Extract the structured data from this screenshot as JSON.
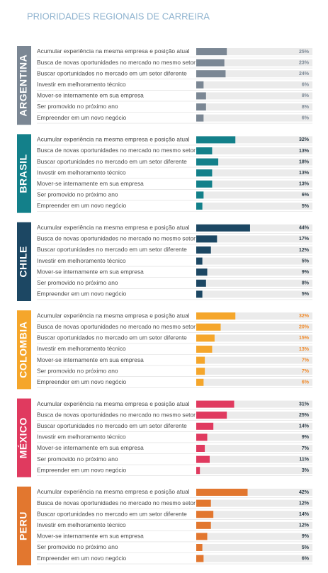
{
  "title": "PRIORIDADES REGIONAIS DE CARREIRA",
  "chart_data": [
    {
      "type": "bar",
      "orientation": "horizontal",
      "title": "ARGENTINA",
      "color": "#7b8794",
      "label_color": "#7b8794",
      "xlim": [
        0,
        95
      ],
      "categories": [
        "Acumular experiência na mesma empresa e posição atual",
        "Busca de novas oportunidades no mercado no mesmo setor",
        "Buscar oportunidades no mercado em um setor diferente",
        "Investir em melhoramento técnico",
        "Mover-se internamente em sua empresa",
        "Ser promovido no próximo ano",
        "Empreender em um novo negócio"
      ],
      "values": [
        25,
        23,
        24,
        6,
        8,
        8,
        6
      ],
      "value_labels": [
        "25%",
        "23%",
        "24%",
        "6%",
        "8%",
        "8%",
        "6%"
      ]
    },
    {
      "type": "bar",
      "orientation": "horizontal",
      "title": "BRASIL",
      "color": "#13808a",
      "label_color": "#2b3a45",
      "xlim": [
        0,
        95
      ],
      "categories": [
        "Acumular experiência na mesma empresa e posição atual",
        "Busca de novas oportunidades no mercado no mesmo setor",
        "Buscar oportunidades no mercado em um setor diferente",
        "Investir em melhoramento técnico",
        "Mover-se internamente em sua empresa",
        "Ser promovido no próximo ano",
        "Empreender em um novo negócio"
      ],
      "values": [
        32,
        13,
        18,
        13,
        13,
        6,
        5
      ],
      "value_labels": [
        "32%",
        "13%",
        "18%",
        "13%",
        "13%",
        "6%",
        "5%"
      ]
    },
    {
      "type": "bar",
      "orientation": "horizontal",
      "title": "CHILE",
      "color": "#1c4763",
      "label_color": "#2b3a45",
      "xlim": [
        0,
        95
      ],
      "categories": [
        "Acumular experiência na mesma empresa e posição atual",
        "Busca de novas oportunidades no mercado no mesmo setor",
        "Buscar oportunidades no mercado em um setor diferente",
        "Investir em melhoramento técnico",
        "Mover-se internamente em sua empresa",
        "Ser promovido no próximo ano",
        "Empreender em um novo negócio"
      ],
      "values": [
        44,
        17,
        12,
        5,
        9,
        8,
        5
      ],
      "value_labels": [
        "44%",
        "17%",
        "12%",
        "5%",
        "9%",
        "8%",
        "5%"
      ]
    },
    {
      "type": "bar",
      "orientation": "horizontal",
      "title": "COLOMBIA",
      "color": "#f5a62b",
      "label_color": "#f08a2a",
      "xlim": [
        0,
        95
      ],
      "categories": [
        "Acumular experiência na mesma empresa e posição atual",
        "Busca de novas oportunidades no mercado no mesmo setor",
        "Buscar oportunidades no mercado em um setor diferente",
        "Investir em melhoramento técnico",
        "Mover-se internamente em sua empresa",
        "Ser promovido no próximo ano",
        "Empreender em um novo negócio"
      ],
      "values": [
        32,
        20,
        15,
        13,
        7,
        7,
        6
      ],
      "value_labels": [
        "32%",
        "20%",
        "15%",
        "13%",
        "7%",
        "7%",
        "6%"
      ]
    },
    {
      "type": "bar",
      "orientation": "horizontal",
      "title": "MÉXICO",
      "color": "#e03a5f",
      "label_color": "#2b3a45",
      "xlim": [
        0,
        95
      ],
      "categories": [
        "Acumular experiência na mesma empresa e posição atual",
        "Busca de novas oportunidades no mercado no mesmo setor",
        "Buscar oportunidades no mercado em um setor diferente",
        "Investir em melhoramento técnico",
        "Mover-se internamente em sua empresa",
        "Ser promovido no próximo ano",
        "Empreender em um novo negócio"
      ],
      "values": [
        31,
        25,
        14,
        9,
        7,
        11,
        3
      ],
      "value_labels": [
        "31%",
        "25%",
        "14%",
        "9%",
        "7%",
        "11%",
        "3%"
      ]
    },
    {
      "type": "bar",
      "orientation": "horizontal",
      "title": "PERU",
      "color": "#e2772f",
      "label_color": "#2b3a45",
      "xlim": [
        0,
        95
      ],
      "categories": [
        "Acumular experiência na mesma empresa e posição atual",
        "Busca de novas oportunidades no mercado no mesmo setor",
        "Buscar oportunidades no mercado em um setor diferente",
        "Investir em melhoramento técnico",
        "Mover-se internamente em sua empresa",
        "Ser promovido no próximo ano",
        "Empreender em um novo negócio"
      ],
      "values": [
        42,
        12,
        14,
        12,
        9,
        5,
        6
      ],
      "value_labels": [
        "42%",
        "12%",
        "14%",
        "12%",
        "9%",
        "5%",
        "6%"
      ]
    }
  ]
}
